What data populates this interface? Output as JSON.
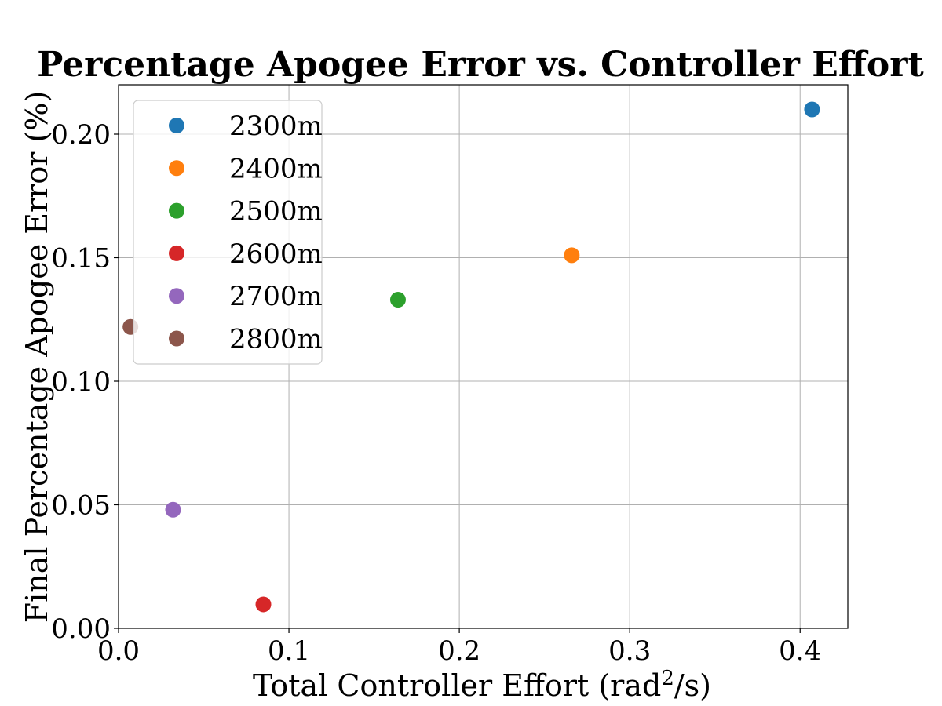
{
  "chart_data": {
    "type": "scatter",
    "title": "Percentage Apogee Error vs. Controller Effort",
    "xlabel": "Total Controller Effort (rad",
    "xlabel_sup": "2",
    "xlabel_tail": "/s)",
    "ylabel": "Final Percentage Apogee Error (%)",
    "xlim": [
      0.0,
      0.428
    ],
    "ylim": [
      0.0,
      0.22
    ],
    "xticks": [
      0.0,
      0.1,
      0.2,
      0.3,
      0.4
    ],
    "xtick_labels": [
      "0.0",
      "0.1",
      "0.2",
      "0.3",
      "0.4"
    ],
    "yticks": [
      0.0,
      0.05,
      0.1,
      0.15,
      0.2
    ],
    "ytick_labels": [
      "0.00",
      "0.05",
      "0.10",
      "0.15",
      "0.20"
    ],
    "grid": true,
    "legend_position": "upper-left",
    "series": [
      {
        "name": "2300m",
        "color": "#1f77b4",
        "x": [
          0.407
        ],
        "y": [
          0.21
        ]
      },
      {
        "name": "2400m",
        "color": "#ff7f0e",
        "x": [
          0.266
        ],
        "y": [
          0.151
        ]
      },
      {
        "name": "2500m",
        "color": "#2ca02c",
        "x": [
          0.164
        ],
        "y": [
          0.133
        ]
      },
      {
        "name": "2600m",
        "color": "#d62728",
        "x": [
          0.085
        ],
        "y": [
          0.0097
        ]
      },
      {
        "name": "2700m",
        "color": "#9467bd",
        "x": [
          0.032
        ],
        "y": [
          0.048
        ]
      },
      {
        "name": "2800m",
        "color": "#8c564b",
        "x": [
          0.007
        ],
        "y": [
          0.122
        ]
      }
    ]
  }
}
